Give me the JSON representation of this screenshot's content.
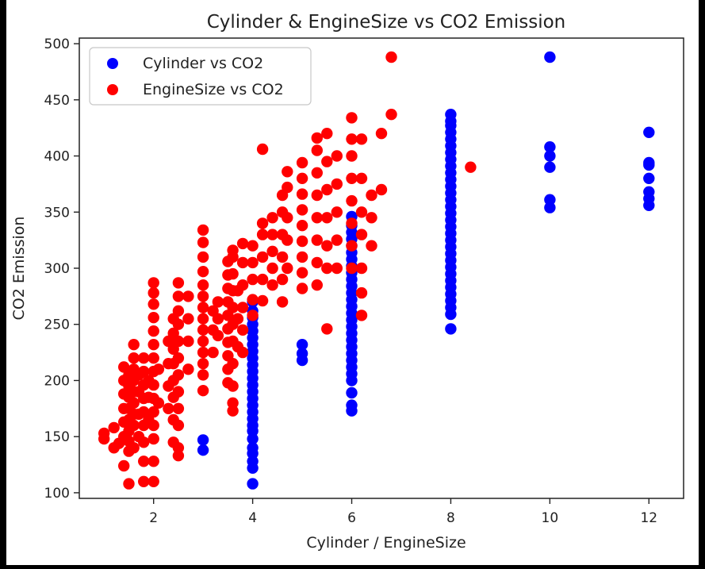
{
  "colors": {
    "background_frame": "#000000",
    "plot_background": "#ffffff",
    "axes": "#222222",
    "cylinder_series": "#0000ff",
    "enginesize_series": "#ff0000"
  },
  "chart_data": {
    "type": "scatter",
    "title": "Cylinder & EngineSize vs CO2 Emission",
    "xlabel": "Cylinder / EngineSize",
    "ylabel": "CO2 Emission",
    "xlim": [
      0.5,
      12.7
    ],
    "ylim": [
      95,
      505
    ],
    "xticks": [
      2,
      4,
      6,
      8,
      10,
      12
    ],
    "yticks": [
      100,
      150,
      200,
      250,
      300,
      350,
      400,
      450,
      500
    ],
    "grid": false,
    "legend": {
      "placement": "top-left"
    },
    "series": [
      {
        "name": "Cylinder vs CO2",
        "color": "#0000ff",
        "points": [
          [
            3,
            138
          ],
          [
            3,
            147
          ],
          [
            4,
            108
          ],
          [
            4,
            122
          ],
          [
            4,
            128
          ],
          [
            4,
            135
          ],
          [
            4,
            140
          ],
          [
            4,
            148
          ],
          [
            4,
            155
          ],
          [
            4,
            160
          ],
          [
            4,
            166
          ],
          [
            4,
            172
          ],
          [
            4,
            178
          ],
          [
            4,
            184
          ],
          [
            4,
            190
          ],
          [
            4,
            196
          ],
          [
            4,
            202
          ],
          [
            4,
            208
          ],
          [
            4,
            214
          ],
          [
            4,
            220
          ],
          [
            4,
            226
          ],
          [
            4,
            232
          ],
          [
            4,
            238
          ],
          [
            4,
            244
          ],
          [
            4,
            250
          ],
          [
            4,
            256
          ],
          [
            4,
            262
          ],
          [
            4,
            270
          ],
          [
            5,
            218
          ],
          [
            5,
            224
          ],
          [
            5,
            232
          ],
          [
            6,
            173
          ],
          [
            6,
            178
          ],
          [
            6,
            189
          ],
          [
            6,
            200
          ],
          [
            6,
            206
          ],
          [
            6,
            212
          ],
          [
            6,
            218
          ],
          [
            6,
            224
          ],
          [
            6,
            230
          ],
          [
            6,
            236
          ],
          [
            6,
            242
          ],
          [
            6,
            248
          ],
          [
            6,
            254
          ],
          [
            6,
            260
          ],
          [
            6,
            266
          ],
          [
            6,
            272
          ],
          [
            6,
            278
          ],
          [
            6,
            284
          ],
          [
            6,
            290
          ],
          [
            6,
            296
          ],
          [
            6,
            302
          ],
          [
            6,
            308
          ],
          [
            6,
            314
          ],
          [
            6,
            320
          ],
          [
            6,
            326
          ],
          [
            6,
            332
          ],
          [
            6,
            338
          ],
          [
            6,
            346
          ],
          [
            8,
            246
          ],
          [
            8,
            259
          ],
          [
            8,
            265
          ],
          [
            8,
            271
          ],
          [
            8,
            277
          ],
          [
            8,
            283
          ],
          [
            8,
            289
          ],
          [
            8,
            295
          ],
          [
            8,
            301
          ],
          [
            8,
            307
          ],
          [
            8,
            313
          ],
          [
            8,
            319
          ],
          [
            8,
            325
          ],
          [
            8,
            331
          ],
          [
            8,
            337
          ],
          [
            8,
            343
          ],
          [
            8,
            349
          ],
          [
            8,
            355
          ],
          [
            8,
            361
          ],
          [
            8,
            367
          ],
          [
            8,
            373
          ],
          [
            8,
            379
          ],
          [
            8,
            385
          ],
          [
            8,
            391
          ],
          [
            8,
            397
          ],
          [
            8,
            403
          ],
          [
            8,
            409
          ],
          [
            8,
            415
          ],
          [
            8,
            421
          ],
          [
            8,
            427
          ],
          [
            8,
            431
          ],
          [
            8,
            437
          ],
          [
            10,
            354
          ],
          [
            10,
            361
          ],
          [
            10,
            390
          ],
          [
            10,
            400
          ],
          [
            10,
            408
          ],
          [
            10,
            488
          ],
          [
            12,
            356
          ],
          [
            12,
            362
          ],
          [
            12,
            368
          ],
          [
            12,
            380
          ],
          [
            12,
            392
          ],
          [
            12,
            394
          ],
          [
            12,
            421
          ]
        ]
      },
      {
        "name": "EngineSize vs CO2",
        "color": "#ff0000",
        "points": [
          [
            1.0,
            148
          ],
          [
            1.0,
            153
          ],
          [
            1.2,
            140
          ],
          [
            1.2,
            158
          ],
          [
            1.3,
            144
          ],
          [
            1.4,
            124
          ],
          [
            1.4,
            150
          ],
          [
            1.4,
            163
          ],
          [
            1.4,
            175
          ],
          [
            1.4,
            188
          ],
          [
            1.4,
            200
          ],
          [
            1.4,
            212
          ],
          [
            1.5,
            108
          ],
          [
            1.5,
            137
          ],
          [
            1.5,
            146
          ],
          [
            1.5,
            155
          ],
          [
            1.5,
            165
          ],
          [
            1.5,
            175
          ],
          [
            1.5,
            185
          ],
          [
            1.5,
            195
          ],
          [
            1.5,
            205
          ],
          [
            1.6,
            140
          ],
          [
            1.6,
            160
          ],
          [
            1.6,
            170
          ],
          [
            1.6,
            180
          ],
          [
            1.6,
            190
          ],
          [
            1.6,
            200
          ],
          [
            1.6,
            210
          ],
          [
            1.6,
            220
          ],
          [
            1.6,
            232
          ],
          [
            1.7,
            150
          ],
          [
            1.7,
            170
          ],
          [
            1.7,
            190
          ],
          [
            1.7,
            205
          ],
          [
            1.8,
            110
          ],
          [
            1.8,
            128
          ],
          [
            1.8,
            145
          ],
          [
            1.8,
            160
          ],
          [
            1.8,
            172
          ],
          [
            1.8,
            184
          ],
          [
            1.8,
            196
          ],
          [
            1.8,
            208
          ],
          [
            1.8,
            220
          ],
          [
            1.9,
            165
          ],
          [
            1.9,
            185
          ],
          [
            1.9,
            200
          ],
          [
            2.0,
            110
          ],
          [
            2.0,
            128
          ],
          [
            2.0,
            148
          ],
          [
            2.0,
            160
          ],
          [
            2.0,
            172
          ],
          [
            2.0,
            184
          ],
          [
            2.0,
            196
          ],
          [
            2.0,
            208
          ],
          [
            2.0,
            220
          ],
          [
            2.0,
            232
          ],
          [
            2.0,
            244
          ],
          [
            2.0,
            256
          ],
          [
            2.0,
            268
          ],
          [
            2.0,
            278
          ],
          [
            2.0,
            287
          ],
          [
            2.1,
            180
          ],
          [
            2.1,
            210
          ],
          [
            2.3,
            175
          ],
          [
            2.3,
            195
          ],
          [
            2.3,
            215
          ],
          [
            2.3,
            235
          ],
          [
            2.4,
            145
          ],
          [
            2.4,
            165
          ],
          [
            2.4,
            185
          ],
          [
            2.4,
            200
          ],
          [
            2.4,
            215
          ],
          [
            2.4,
            228
          ],
          [
            2.4,
            242
          ],
          [
            2.4,
            255
          ],
          [
            2.5,
            133
          ],
          [
            2.5,
            140
          ],
          [
            2.5,
            160
          ],
          [
            2.5,
            175
          ],
          [
            2.5,
            190
          ],
          [
            2.5,
            205
          ],
          [
            2.5,
            220
          ],
          [
            2.5,
            235
          ],
          [
            2.5,
            250
          ],
          [
            2.5,
            262
          ],
          [
            2.5,
            275
          ],
          [
            2.5,
            287
          ],
          [
            2.7,
            210
          ],
          [
            2.7,
            235
          ],
          [
            2.7,
            255
          ],
          [
            2.7,
            275
          ],
          [
            3.0,
            191
          ],
          [
            3.0,
            205
          ],
          [
            3.0,
            215
          ],
          [
            3.0,
            225
          ],
          [
            3.0,
            235
          ],
          [
            3.0,
            245
          ],
          [
            3.0,
            255
          ],
          [
            3.0,
            265
          ],
          [
            3.0,
            275
          ],
          [
            3.0,
            285
          ],
          [
            3.0,
            297
          ],
          [
            3.0,
            310
          ],
          [
            3.0,
            323
          ],
          [
            3.0,
            334
          ],
          [
            3.2,
            225
          ],
          [
            3.2,
            245
          ],
          [
            3.2,
            262
          ],
          [
            3.3,
            240
          ],
          [
            3.3,
            255
          ],
          [
            3.3,
            270
          ],
          [
            3.5,
            198
          ],
          [
            3.5,
            210
          ],
          [
            3.5,
            222
          ],
          [
            3.5,
            234
          ],
          [
            3.5,
            246
          ],
          [
            3.5,
            258
          ],
          [
            3.5,
            270
          ],
          [
            3.5,
            282
          ],
          [
            3.5,
            294
          ],
          [
            3.5,
            306
          ],
          [
            3.6,
            173
          ],
          [
            3.6,
            180
          ],
          [
            3.6,
            195
          ],
          [
            3.6,
            215
          ],
          [
            3.6,
            235
          ],
          [
            3.6,
            250
          ],
          [
            3.6,
            265
          ],
          [
            3.6,
            280
          ],
          [
            3.6,
            295
          ],
          [
            3.6,
            310
          ],
          [
            3.6,
            316
          ],
          [
            3.7,
            230
          ],
          [
            3.7,
            255
          ],
          [
            3.7,
            280
          ],
          [
            3.8,
            225
          ],
          [
            3.8,
            245
          ],
          [
            3.8,
            265
          ],
          [
            3.8,
            285
          ],
          [
            3.8,
            305
          ],
          [
            3.8,
            322
          ],
          [
            4.0,
            258
          ],
          [
            4.0,
            272
          ],
          [
            4.0,
            290
          ],
          [
            4.0,
            305
          ],
          [
            4.0,
            320
          ],
          [
            4.2,
            271
          ],
          [
            4.2,
            290
          ],
          [
            4.2,
            310
          ],
          [
            4.2,
            330
          ],
          [
            4.2,
            340
          ],
          [
            4.2,
            406
          ],
          [
            4.4,
            285
          ],
          [
            4.4,
            300
          ],
          [
            4.4,
            315
          ],
          [
            4.4,
            330
          ],
          [
            4.4,
            345
          ],
          [
            4.6,
            270
          ],
          [
            4.6,
            290
          ],
          [
            4.6,
            310
          ],
          [
            4.6,
            330
          ],
          [
            4.6,
            350
          ],
          [
            4.6,
            365
          ],
          [
            4.7,
            300
          ],
          [
            4.7,
            325
          ],
          [
            4.7,
            345
          ],
          [
            4.7,
            372
          ],
          [
            4.7,
            386
          ],
          [
            5.0,
            282
          ],
          [
            5.0,
            296
          ],
          [
            5.0,
            310
          ],
          [
            5.0,
            324
          ],
          [
            5.0,
            338
          ],
          [
            5.0,
            352
          ],
          [
            5.0,
            366
          ],
          [
            5.0,
            380
          ],
          [
            5.0,
            394
          ],
          [
            5.3,
            285
          ],
          [
            5.3,
            305
          ],
          [
            5.3,
            325
          ],
          [
            5.3,
            345
          ],
          [
            5.3,
            365
          ],
          [
            5.3,
            385
          ],
          [
            5.3,
            405
          ],
          [
            5.3,
            416
          ],
          [
            5.5,
            246
          ],
          [
            5.5,
            300
          ],
          [
            5.5,
            320
          ],
          [
            5.5,
            345
          ],
          [
            5.5,
            370
          ],
          [
            5.5,
            395
          ],
          [
            5.5,
            420
          ],
          [
            5.7,
            300
          ],
          [
            5.7,
            325
          ],
          [
            5.7,
            350
          ],
          [
            5.7,
            375
          ],
          [
            5.7,
            400
          ],
          [
            6.0,
            300
          ],
          [
            6.0,
            320
          ],
          [
            6.0,
            340
          ],
          [
            6.0,
            360
          ],
          [
            6.0,
            380
          ],
          [
            6.0,
            400
          ],
          [
            6.0,
            415
          ],
          [
            6.0,
            434
          ],
          [
            6.2,
            258
          ],
          [
            6.2,
            278
          ],
          [
            6.2,
            300
          ],
          [
            6.2,
            330
          ],
          [
            6.2,
            350
          ],
          [
            6.2,
            380
          ],
          [
            6.2,
            415
          ],
          [
            6.4,
            320
          ],
          [
            6.4,
            345
          ],
          [
            6.4,
            365
          ],
          [
            6.6,
            370
          ],
          [
            6.6,
            420
          ],
          [
            6.8,
            437
          ],
          [
            6.8,
            488
          ],
          [
            8.4,
            390
          ]
        ]
      }
    ]
  }
}
